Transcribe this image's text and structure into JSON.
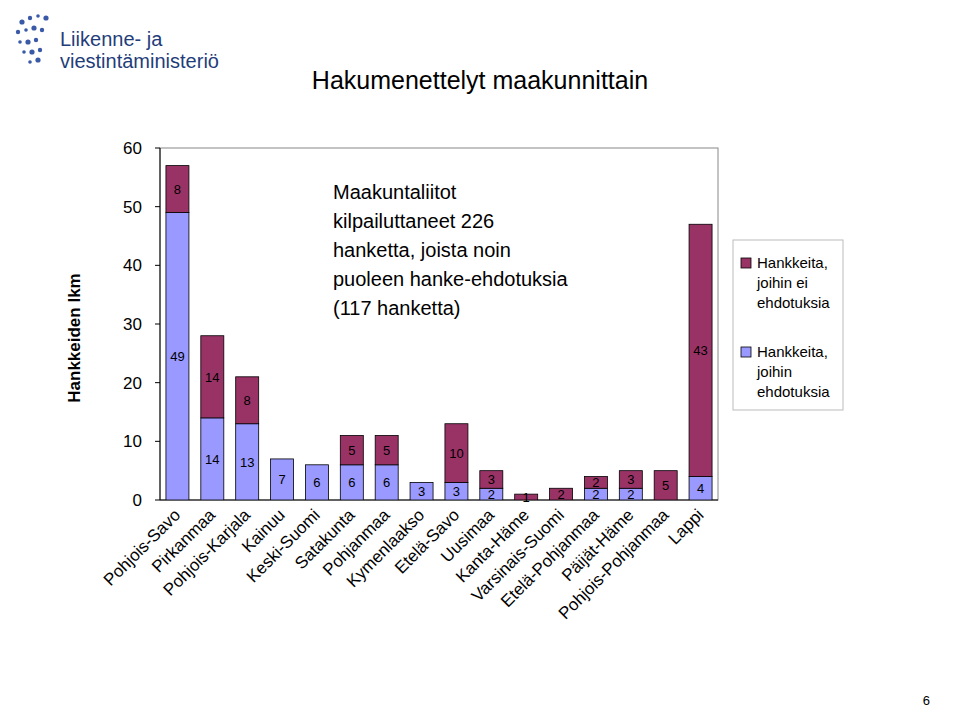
{
  "header": {
    "logo_lines": [
      "Liikenne- ja",
      "viestintäministeriö"
    ]
  },
  "footer": {
    "page": 6
  },
  "chart_data": {
    "type": "bar",
    "stacked": true,
    "data_labels": true,
    "grid": false,
    "legend": "right",
    "title": "Hakumenettelyt maakunnittain",
    "y_label": "Hankkeiden lkm",
    "annotations": [
      "Maakuntaliitot",
      "kilpailuttaneet 226",
      "hanketta, joista noin",
      "puoleen hanke-ehdotuksia",
      "(117 hanketta)"
    ],
    "categories": [
      "Pohjois-Savo",
      "Pirkanmaa",
      "Pohjois-Karjala",
      "Kainuu",
      "Keski-Suomi",
      "Satakunta",
      "Pohjanmaa",
      "Kymenlaakso",
      "Etelä-Savo",
      "Uusimaa",
      "Kanta-Häme",
      "Varsinais-Suomi",
      "Etelä-Pohjanmaa",
      "Päijät-Häme",
      "Pohjois-Pohjanmaa",
      "Lappi"
    ],
    "series": [
      {
        "name": "Hankkeita, joihin ehdotuksia",
        "color": "#9999ff",
        "values": [
          49,
          14,
          13,
          7,
          6,
          6,
          6,
          3,
          3,
          2,
          null,
          null,
          2,
          2,
          null,
          4
        ]
      },
      {
        "name": "Hankkeita, joihin ei ehdotuksia",
        "color": "#993366",
        "values": [
          8,
          14,
          8,
          null,
          null,
          5,
          5,
          null,
          10,
          3,
          1,
          2,
          2,
          3,
          5,
          43
        ]
      }
    ],
    "ylim": [
      0,
      60
    ],
    "yticks": [
      0,
      10,
      20,
      30,
      40,
      50,
      60
    ]
  }
}
